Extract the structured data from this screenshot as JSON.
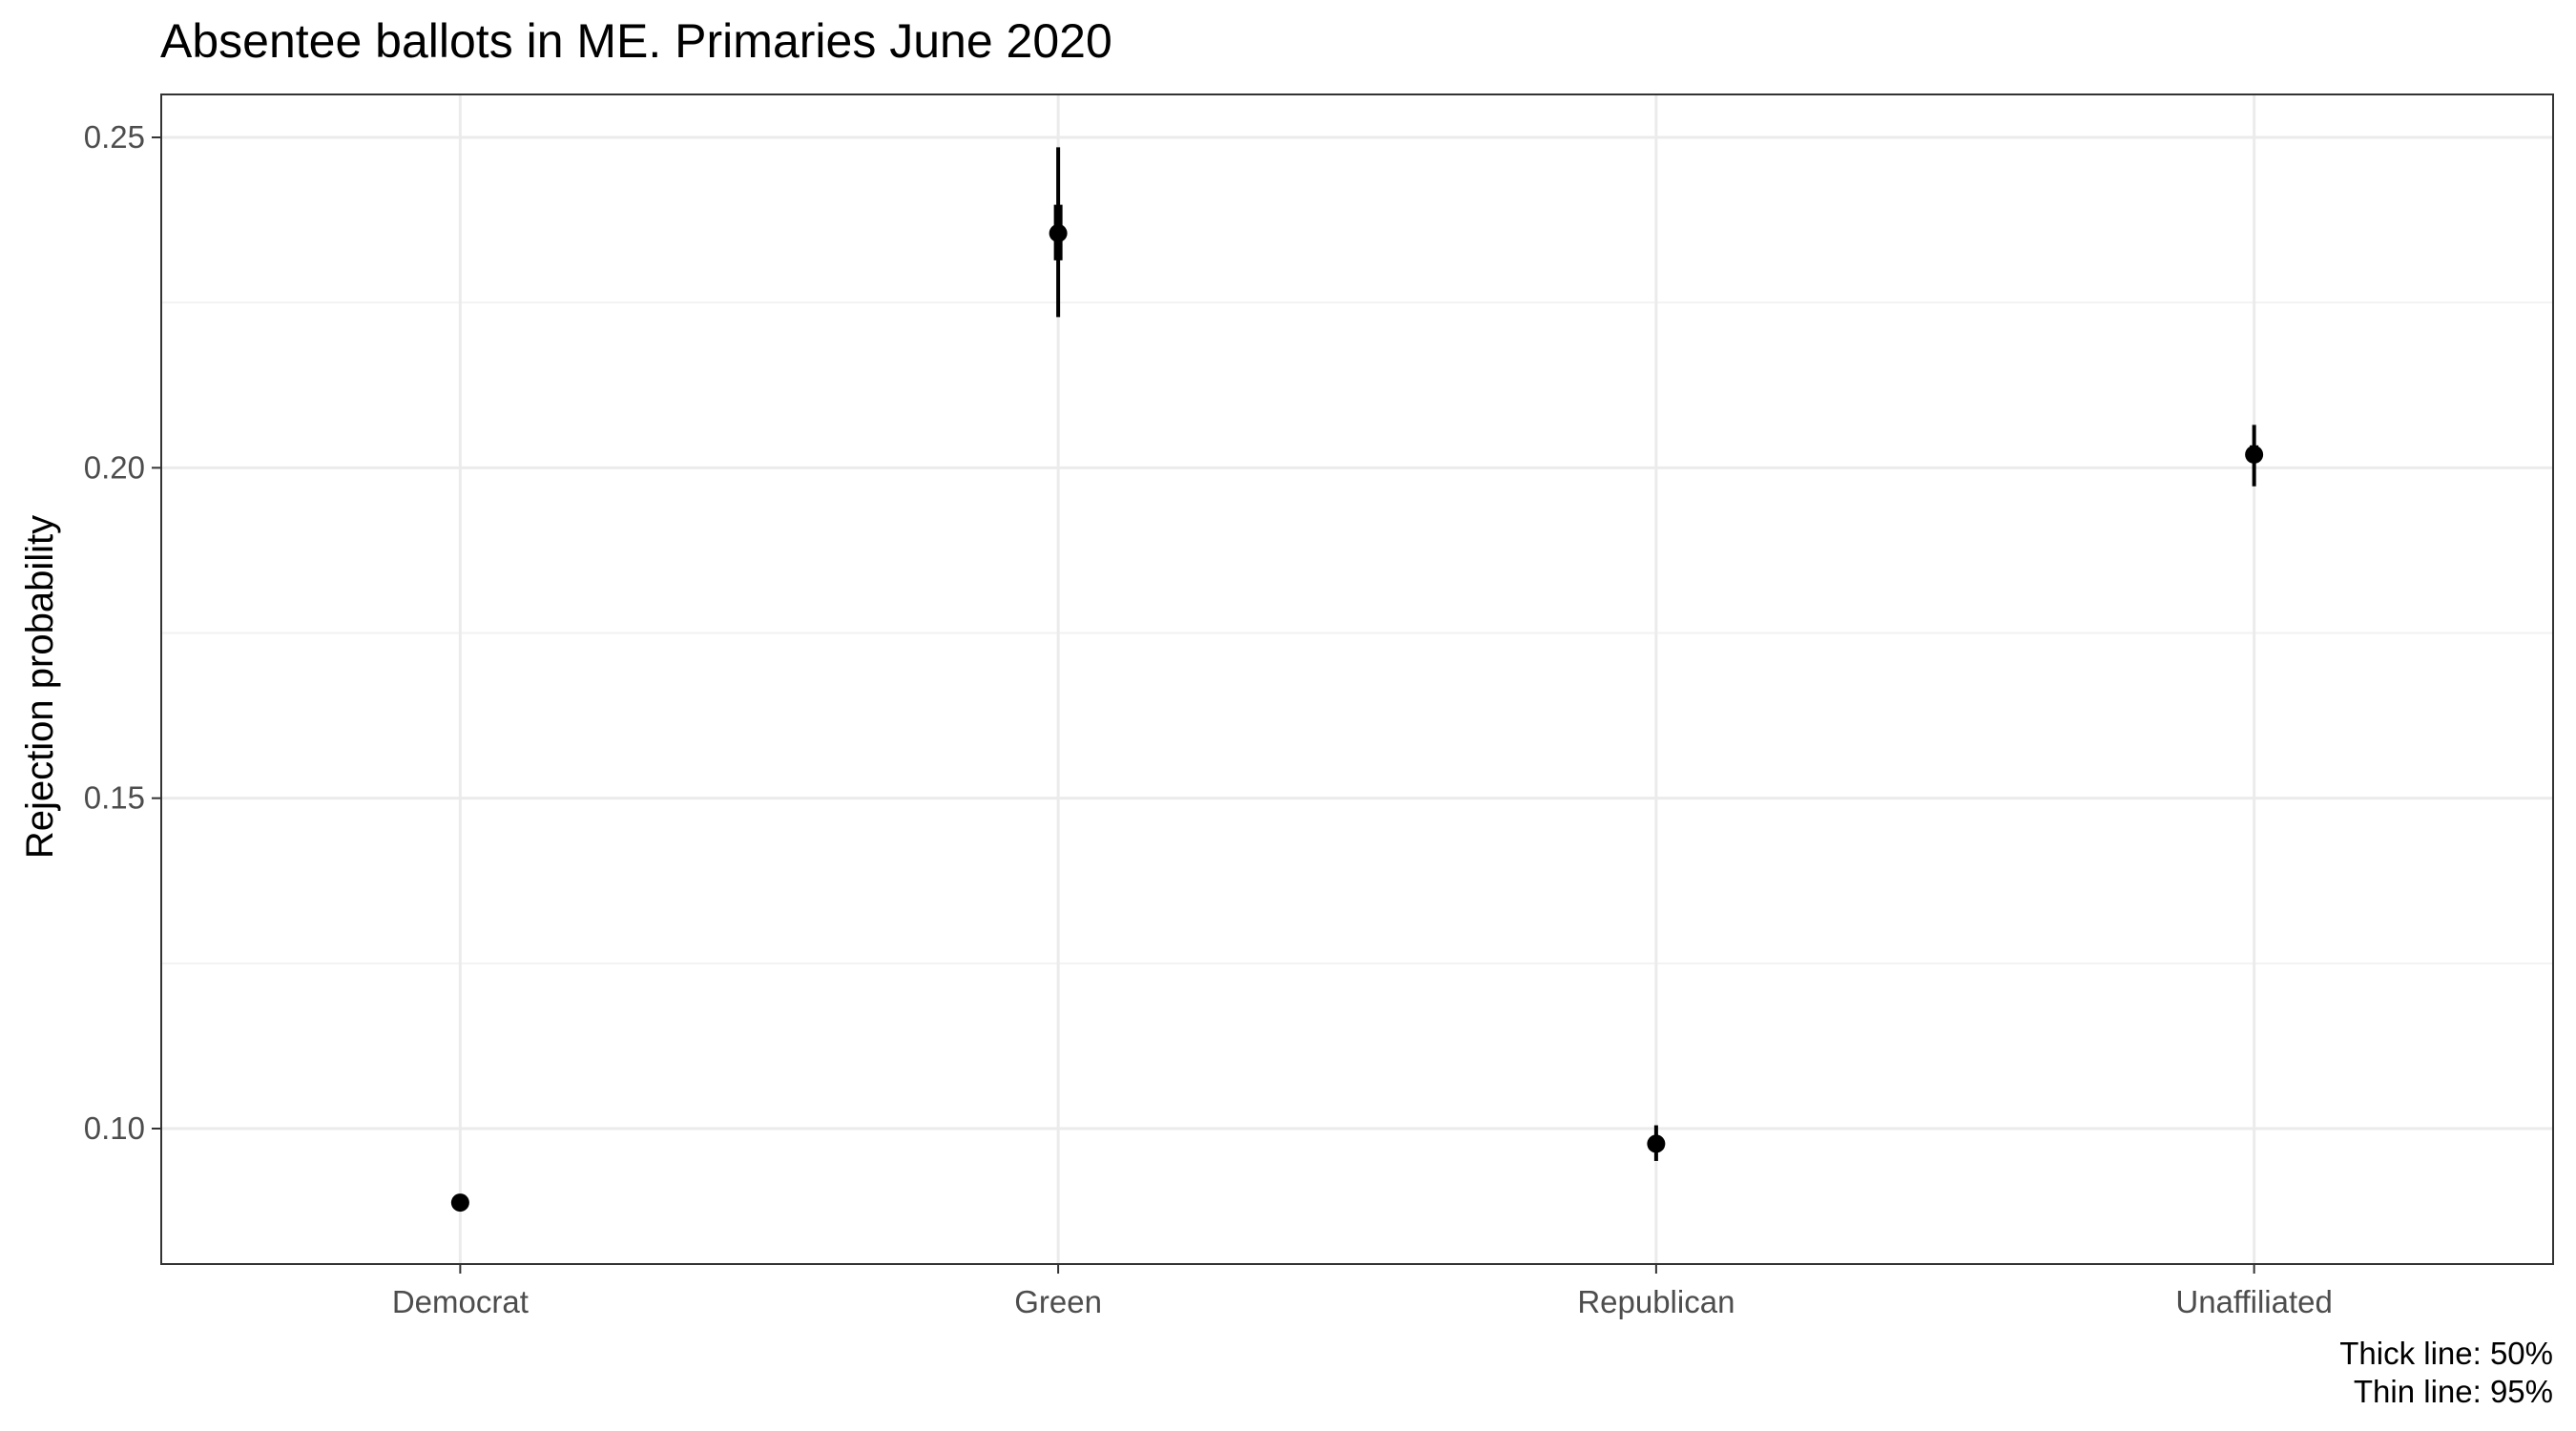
{
  "chart_data": {
    "type": "scatter",
    "title": "Absentee ballots in ME. Primaries June 2020",
    "xlabel": "",
    "ylabel": "Rejection probability",
    "caption": [
      "Thick line: 50%",
      "Thin line: 95%"
    ],
    "categories": [
      "Democrat",
      "Green",
      "Republican",
      "Unaffiliated"
    ],
    "ylim": [
      0.0795,
      0.2565
    ],
    "yticks": [
      0.1,
      0.15,
      0.2,
      0.25
    ],
    "ytick_labels": [
      "0.10",
      "0.15",
      "0.20",
      "0.25"
    ],
    "grid": true,
    "points": [
      {
        "category": "Democrat",
        "estimate": 0.0888,
        "ci50": [
          0.0883,
          0.0893
        ],
        "ci95": [
          0.0876,
          0.09
        ]
      },
      {
        "category": "Green",
        "estimate": 0.2355,
        "ci50": [
          0.2314,
          0.2398
        ],
        "ci95": [
          0.2228,
          0.2485
        ]
      },
      {
        "category": "Republican",
        "estimate": 0.0977,
        "ci50": [
          0.0968,
          0.0986
        ],
        "ci95": [
          0.0951,
          0.1005
        ]
      },
      {
        "category": "Unaffiliated",
        "estimate": 0.202,
        "ci50": [
          0.2008,
          0.2034
        ],
        "ci95": [
          0.1972,
          0.2065
        ]
      }
    ],
    "colors": {
      "point": "#000000",
      "panel_border": "#333333",
      "grid_major": "#ebebeb",
      "grid_minor": "#f2f2f2",
      "tick_label": "#4d4d4d"
    }
  }
}
